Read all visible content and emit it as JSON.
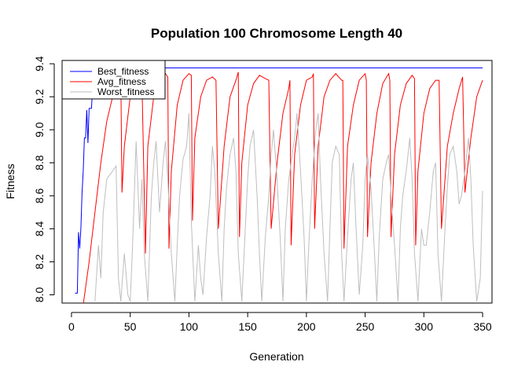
{
  "chart_data": {
    "type": "line",
    "title": "Population 100  Chromosome Length 40",
    "xlabel": "Generation",
    "ylabel": "Fitness",
    "xlim": [
      -8,
      358
    ],
    "ylim": [
      7.95,
      9.42
    ],
    "xticks": [
      0,
      50,
      100,
      150,
      200,
      250,
      300,
      350
    ],
    "xtick_labels": [
      "0",
      "50",
      "100",
      "150",
      "200",
      "250",
      "300",
      "350"
    ],
    "yticks": [
      8.0,
      8.2,
      8.4,
      8.6,
      8.8,
      9.0,
      9.2,
      9.4
    ],
    "ytick_labels": [
      "8.0",
      "8.2",
      "8.4",
      "8.6",
      "8.8",
      "9.0",
      "9.2",
      "9.4"
    ],
    "legend_position": "top-left",
    "grid": false,
    "series": [
      {
        "name": "Best_fitness",
        "color": "#0000ff",
        "x": [
          3,
          5,
          6,
          7,
          8,
          9,
          10,
          11,
          12,
          13,
          14,
          15,
          16,
          17,
          18,
          19,
          20,
          350
        ],
        "y": [
          8.01,
          8.01,
          8.38,
          8.28,
          8.4,
          8.62,
          8.75,
          8.95,
          8.95,
          9.12,
          8.92,
          9.13,
          9.13,
          9.13,
          9.26,
          9.26,
          9.375,
          9.375
        ]
      },
      {
        "name": "Avg_fitness",
        "color": "#ff0000",
        "x": [
          10,
          15,
          20,
          25,
          30,
          35,
          40,
          42,
          43,
          45,
          50,
          55,
          58,
          60,
          62,
          63,
          65,
          70,
          75,
          80,
          82,
          83,
          85,
          90,
          95,
          100,
          102,
          103,
          105,
          110,
          115,
          120,
          123,
          125,
          130,
          135,
          140,
          142,
          143,
          145,
          150,
          155,
          160,
          165,
          168,
          170,
          175,
          180,
          185,
          186,
          187,
          190,
          195,
          200,
          205,
          206,
          207,
          210,
          215,
          220,
          225,
          230,
          231,
          232,
          235,
          240,
          245,
          250,
          251,
          252,
          255,
          260,
          265,
          270,
          271,
          272,
          275,
          280,
          285,
          290,
          292,
          293,
          295,
          300,
          305,
          310,
          313,
          315,
          320,
          325,
          330,
          333,
          335,
          340,
          345,
          350
        ],
        "y": [
          7.94,
          8.2,
          8.5,
          8.8,
          9.05,
          9.2,
          9.3,
          9.33,
          8.62,
          8.9,
          9.2,
          9.3,
          9.34,
          9.3,
          8.6,
          8.25,
          8.9,
          9.2,
          9.3,
          9.34,
          9.32,
          8.28,
          8.75,
          9.15,
          9.3,
          9.34,
          9.33,
          8.45,
          8.95,
          9.2,
          9.3,
          9.32,
          9.3,
          8.4,
          8.9,
          9.2,
          9.3,
          9.35,
          8.35,
          8.8,
          9.15,
          9.28,
          9.33,
          9.31,
          9.3,
          8.4,
          8.8,
          9.1,
          9.25,
          9.3,
          8.3,
          8.85,
          9.15,
          9.3,
          9.32,
          9.34,
          8.4,
          8.9,
          9.2,
          9.3,
          9.34,
          9.3,
          9.3,
          8.28,
          8.9,
          9.15,
          9.3,
          9.34,
          9.3,
          8.35,
          8.8,
          9.1,
          9.28,
          9.34,
          9.3,
          8.35,
          8.85,
          9.15,
          9.28,
          9.33,
          9.31,
          8.3,
          8.75,
          9.1,
          9.25,
          9.3,
          9.3,
          8.4,
          8.9,
          9.1,
          9.25,
          9.32,
          8.62,
          8.95,
          9.2,
          9.3
        ]
      },
      {
        "name": "Worst_fitness",
        "color": "#bebebe",
        "x": [
          20,
          23,
          25,
          27,
          30,
          35,
          38,
          40,
          42,
          45,
          48,
          50,
          52,
          55,
          58,
          60,
          62,
          65,
          68,
          70,
          72,
          75,
          78,
          80,
          82,
          85,
          88,
          90,
          92,
          95,
          98,
          100,
          102,
          105,
          108,
          110,
          112,
          115,
          118,
          120,
          122,
          125,
          128,
          130,
          132,
          135,
          138,
          140,
          142,
          145,
          148,
          150,
          152,
          155,
          158,
          160,
          162,
          165,
          168,
          170,
          172,
          175,
          178,
          180,
          182,
          185,
          188,
          190,
          192,
          195,
          198,
          200,
          202,
          205,
          208,
          210,
          212,
          215,
          218,
          220,
          222,
          225,
          228,
          230,
          232,
          235,
          238,
          240,
          242,
          245,
          248,
          250,
          252,
          255,
          258,
          260,
          262,
          265,
          268,
          270,
          272,
          275,
          278,
          280,
          282,
          285,
          288,
          290,
          292,
          295,
          298,
          300,
          302,
          305,
          308,
          310,
          312,
          315,
          318,
          320,
          322,
          325,
          328,
          330,
          332,
          335,
          338,
          340,
          342,
          345,
          348,
          350
        ],
        "y": [
          7.96,
          8.3,
          8.1,
          8.5,
          8.7,
          8.75,
          8.78,
          8.1,
          7.96,
          8.25,
          8.0,
          7.96,
          8.3,
          8.93,
          8.4,
          8.7,
          8.25,
          7.96,
          8.6,
          8.8,
          8.93,
          8.5,
          8.8,
          8.93,
          8.7,
          8.25,
          7.96,
          8.3,
          8.6,
          8.82,
          8.9,
          9.1,
          8.45,
          7.96,
          8.3,
          8.1,
          8.0,
          8.35,
          8.6,
          8.9,
          8.75,
          8.25,
          7.96,
          8.4,
          8.65,
          8.85,
          8.95,
          8.75,
          8.25,
          7.96,
          8.4,
          8.7,
          8.9,
          9.0,
          8.6,
          8.25,
          7.96,
          8.35,
          8.6,
          8.85,
          9.0,
          8.7,
          8.3,
          7.96,
          8.4,
          8.7,
          8.85,
          8.95,
          9.1,
          8.75,
          8.35,
          7.96,
          8.3,
          8.7,
          9.0,
          9.1,
          8.7,
          8.25,
          7.96,
          8.4,
          8.8,
          8.9,
          8.85,
          8.25,
          7.96,
          8.35,
          8.7,
          8.8,
          8.45,
          8.0,
          8.3,
          8.7,
          8.85,
          8.65,
          8.25,
          7.96,
          8.35,
          8.7,
          8.8,
          8.85,
          8.6,
          8.3,
          7.96,
          8.4,
          8.6,
          8.75,
          8.95,
          8.7,
          8.25,
          7.96,
          8.4,
          8.3,
          8.3,
          8.5,
          8.75,
          8.8,
          8.25,
          7.96,
          8.4,
          8.65,
          8.85,
          8.9,
          8.75,
          8.55,
          8.6,
          8.75,
          8.95,
          8.7,
          8.3,
          7.96,
          8.1,
          8.63
        ]
      }
    ]
  }
}
